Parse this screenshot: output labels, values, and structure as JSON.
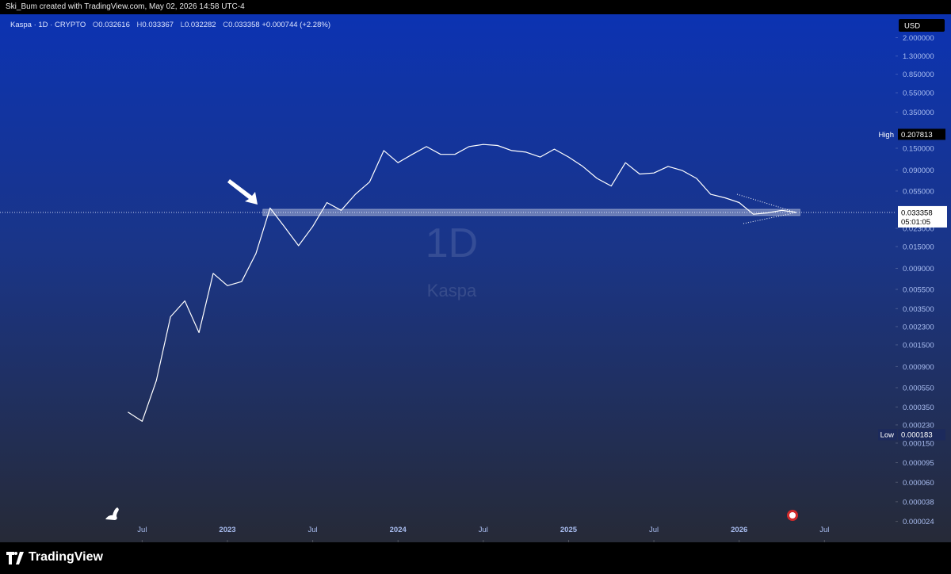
{
  "header": {
    "credit": "Ski_Bum created with TradingView.com, May 02, 2026 14:58 UTC-4"
  },
  "legend": {
    "symbol": "Kaspa · 1D · CRYPTO",
    "open_label": "O",
    "open": "0.032616",
    "high_label": "H",
    "high": "0.033367",
    "low_label": "L",
    "low": "0.032282",
    "close_label": "C",
    "close": "0.033358",
    "change": "+0.000744 (+2.28%)"
  },
  "currency": "USD",
  "watermark": {
    "interval": "1D",
    "name": "Kaspa"
  },
  "footer": {
    "brand": "TradingView"
  },
  "chart_data": {
    "type": "line",
    "log_scale": true,
    "color": "#ffffff",
    "x": [
      "2022-06",
      "2022-07",
      "2022-08",
      "2022-09",
      "2022-10",
      "2022-11",
      "2022-12",
      "2023-01",
      "2023-02",
      "2023-03",
      "2023-04",
      "2023-05",
      "2023-06",
      "2023-07",
      "2023-08",
      "2023-09",
      "2023-10",
      "2023-11",
      "2023-12",
      "2024-01",
      "2024-02",
      "2024-03",
      "2024-04",
      "2024-05",
      "2024-06",
      "2024-07",
      "2024-08",
      "2024-09",
      "2024-10",
      "2024-11",
      "2024-12",
      "2025-01",
      "2025-02",
      "2025-03",
      "2025-04",
      "2025-05",
      "2025-06",
      "2025-07",
      "2025-08",
      "2025-09",
      "2025-10",
      "2025-11",
      "2025-12",
      "2026-01",
      "2026-02",
      "2026-03",
      "2026-04",
      "2026-05"
    ],
    "values": [
      0.00031,
      0.00025,
      0.00065,
      0.0029,
      0.0042,
      0.002,
      0.008,
      0.006,
      0.0066,
      0.0127,
      0.037,
      0.024,
      0.0153,
      0.024,
      0.042,
      0.035,
      0.051,
      0.068,
      0.142,
      0.107,
      0.13,
      0.156,
      0.13,
      0.13,
      0.156,
      0.164,
      0.16,
      0.142,
      0.137,
      0.122,
      0.147,
      0.122,
      0.098,
      0.074,
      0.062,
      0.107,
      0.082,
      0.084,
      0.098,
      0.089,
      0.074,
      0.051,
      0.047,
      0.042,
      0.032,
      0.033,
      0.035,
      0.033358
    ],
    "xlim": [
      "2021-09",
      "2026-12"
    ],
    "ylim": [
      1.47e-05,
      3.46
    ],
    "xticks": [
      {
        "value": "2022-07",
        "label": "Jul"
      },
      {
        "value": "2023-01",
        "label": "2023"
      },
      {
        "value": "2023-07",
        "label": "Jul"
      },
      {
        "value": "2024-01",
        "label": "2024"
      },
      {
        "value": "2024-07",
        "label": "Jul"
      },
      {
        "value": "2025-01",
        "label": "2025"
      },
      {
        "value": "2025-07",
        "label": "Jul"
      },
      {
        "value": "2026-01",
        "label": "2026"
      },
      {
        "value": "2026-07",
        "label": "Jul"
      }
    ],
    "yticks": [
      {
        "value": 2,
        "label": "2.000000"
      },
      {
        "value": 1.3,
        "label": "1.300000"
      },
      {
        "value": 0.85,
        "label": "0.850000"
      },
      {
        "value": 0.55,
        "label": "0.550000"
      },
      {
        "value": 0.35,
        "label": "0.350000"
      },
      {
        "value": 0.15,
        "label": "0.150000"
      },
      {
        "value": 0.09,
        "label": "0.090000"
      },
      {
        "value": 0.055,
        "label": "0.055000"
      },
      {
        "value": 0.023,
        "label": "0.023000"
      },
      {
        "value": 0.015,
        "label": "0.015000"
      },
      {
        "value": 0.009,
        "label": "0.009000"
      },
      {
        "value": 0.0055,
        "label": "0.005500"
      },
      {
        "value": 0.0035,
        "label": "0.003500"
      },
      {
        "value": 0.0023,
        "label": "0.002300"
      },
      {
        "value": 0.0015,
        "label": "0.001500"
      },
      {
        "value": 0.0009,
        "label": "0.000900"
      },
      {
        "value": 0.00055,
        "label": "0.000550"
      },
      {
        "value": 0.00035,
        "label": "0.000350"
      },
      {
        "value": 0.00023,
        "label": "0.000230"
      },
      {
        "value": 0.00015,
        "label": "0.000150"
      },
      {
        "value": 9.5e-05,
        "label": "0.000095"
      },
      {
        "value": 6e-05,
        "label": "0.000060"
      },
      {
        "value": 3.8e-05,
        "label": "0.000038"
      },
      {
        "value": 2.4e-05,
        "label": "0.000024"
      }
    ],
    "high": {
      "label": "High",
      "value": 0.207813
    },
    "low": {
      "label": "Low",
      "value": 0.000183
    },
    "last": {
      "value": 0.033358,
      "countdown": "05:01:05"
    }
  }
}
